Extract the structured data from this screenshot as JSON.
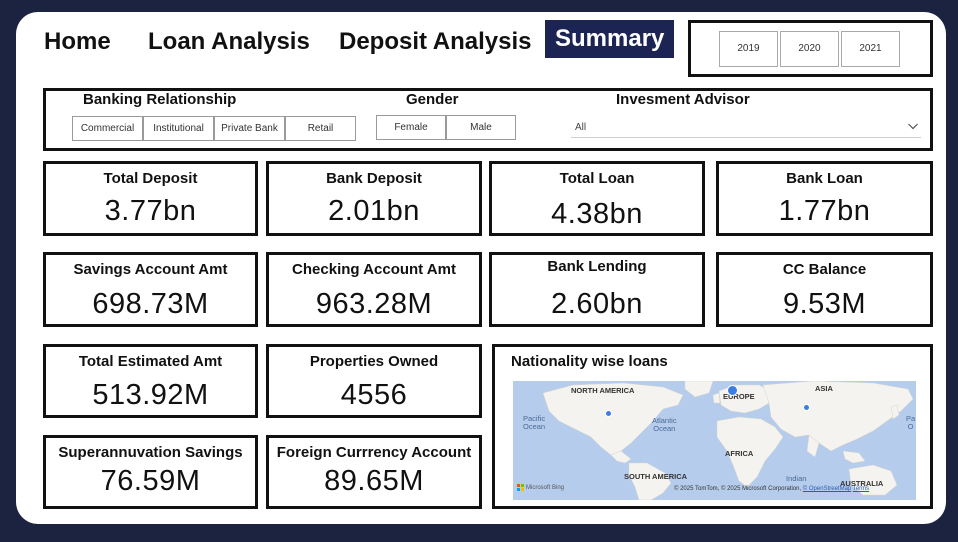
{
  "nav": {
    "home": "Home",
    "loan_analysis": "Loan Analysis",
    "deposit_analysis": "Deposit Analysis",
    "summary": "Summary"
  },
  "years": [
    "2019",
    "2020",
    "2021"
  ],
  "filters": {
    "banking_relationship": {
      "label": "Banking Relationship",
      "options": [
        "Commercial",
        "Institutional",
        "Private Bank",
        "Retail"
      ]
    },
    "gender": {
      "label": "Gender",
      "options": [
        "Female",
        "Male"
      ]
    },
    "investment_advisor": {
      "label": "Invesment Advisor",
      "value": "All"
    }
  },
  "kpis": {
    "total_deposit": {
      "title": "Total Deposit",
      "value": "3.77bn"
    },
    "bank_deposit": {
      "title": "Bank Deposit",
      "value": "2.01bn"
    },
    "total_loan": {
      "title": "Total Loan",
      "value": "4.38bn"
    },
    "bank_loan": {
      "title": "Bank Loan",
      "value": "1.77bn"
    },
    "savings_account_amt": {
      "title": "Savings Account Amt",
      "value": "698.73M"
    },
    "checking_account_amt": {
      "title": "Checking Account Amt",
      "value": "963.28M"
    },
    "bank_lending": {
      "title": "Bank Lending",
      "value": "2.60bn"
    },
    "cc_balance": {
      "title": "CC Balance",
      "value": "9.53M"
    },
    "total_estimated_amt": {
      "title": "Total Estimated Amt",
      "value": "513.92M"
    },
    "properties_owned": {
      "title": "Properties Owned",
      "value": "4556"
    },
    "superannuation_savings": {
      "title": "Superannuvation Savings",
      "value": "76.59M"
    },
    "foreign_currency_account": {
      "title": "Foreign Currrency Account",
      "value": "89.65M"
    }
  },
  "map": {
    "title": "Nationality wise loans",
    "labels": {
      "north_america": "NORTH AMERICA",
      "europe": "EUROPE",
      "asia": "ASIA",
      "africa": "AFRICA",
      "south_america": "SOUTH AMERICA",
      "australia": "AUSTRALIA",
      "pacific_ocean_line1": "Pacific",
      "pacific_ocean_line2": "Ocean",
      "atlantic_ocean_line1": "Atlantic",
      "atlantic_ocean_line2": "Ocean",
      "indian_ocean": "Indian",
      "pacific_right_line1": "Pa",
      "pacific_right_line2": "O"
    },
    "logo_text": "Microsoft Bing",
    "attribution": "© 2025 TomTom, © 2025 Microsoft Corporation,",
    "attribution_link": "© OpenStreetMap",
    "terms": "Terms"
  },
  "colors": {
    "background": "#1b2340",
    "active_tab": "#1b2452",
    "map_water": "#b5ccec",
    "map_land": "#f4f3ef",
    "map_point": "#3b7de0"
  }
}
